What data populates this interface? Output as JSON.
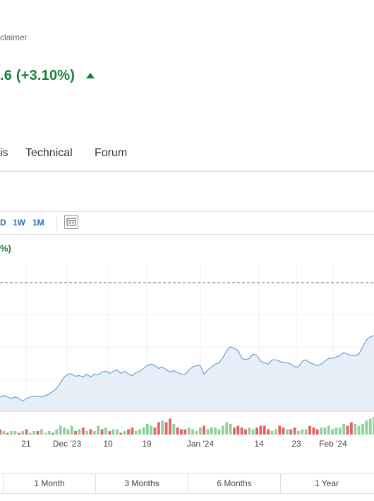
{
  "header": {
    "disclaimer_text": "claimer",
    "price_change_text": ".6  (+3.10%)",
    "pct_change_partial": "%)",
    "accent_up": "#1a7f37"
  },
  "tabs": [
    {
      "label": "is"
    },
    {
      "label": "Technical"
    },
    {
      "label": "Forum"
    }
  ],
  "toolbar": {
    "timeframes": [
      "D",
      "1W",
      "1M"
    ],
    "layout_icon": "layout-icon"
  },
  "chart_data": {
    "type": "area",
    "x_tick_labels": [
      "21",
      "Dec '23",
      "10",
      "19",
      "Jan '24",
      "14",
      "23",
      "Feb '24"
    ],
    "price": [
      20,
      22,
      20,
      18,
      20,
      18,
      14,
      18,
      20,
      21,
      21,
      20,
      22,
      24,
      28,
      32,
      40,
      48,
      52,
      52,
      49,
      50,
      48,
      52,
      48,
      52,
      51,
      55,
      56,
      53,
      56,
      58,
      53,
      56,
      52,
      50,
      54,
      56,
      60,
      64,
      66,
      64,
      60,
      62,
      58,
      55,
      57,
      54,
      52,
      51,
      58,
      62,
      64,
      64,
      52,
      58,
      62,
      66,
      68,
      75,
      85,
      90,
      88,
      85,
      74,
      72,
      74,
      80,
      78,
      70,
      68,
      66,
      72,
      72,
      70,
      68,
      68,
      66,
      62,
      62,
      70,
      72,
      68,
      66,
      64,
      66,
      70,
      74,
      74,
      76,
      78,
      82,
      80,
      78,
      78,
      80,
      90,
      100,
      104,
      106
    ],
    "price_min": 0,
    "price_max": 180,
    "reference_level": 180,
    "volume": [
      3,
      2,
      1,
      2,
      2,
      1,
      2,
      3,
      1,
      2,
      2,
      3,
      1,
      2,
      1,
      3,
      5,
      4,
      3,
      5,
      2,
      3,
      4,
      2,
      3,
      2,
      5,
      3,
      4,
      2,
      3,
      3,
      1,
      2,
      3,
      4,
      2,
      3,
      4,
      6,
      5,
      4,
      7,
      8,
      7,
      9,
      6,
      4,
      3,
      3,
      4,
      3,
      2,
      4,
      5,
      3,
      4,
      4,
      3,
      5,
      7,
      6,
      4,
      5,
      4,
      3,
      4,
      3,
      4,
      5,
      5,
      3,
      2,
      3,
      5,
      4,
      3,
      3,
      4,
      2,
      3,
      3,
      5,
      4,
      3,
      4,
      4,
      5,
      3,
      4,
      4,
      6,
      5,
      7,
      6,
      5,
      6,
      8,
      9,
      10
    ],
    "volume_up": [
      false,
      true,
      false,
      true,
      true,
      false,
      true,
      false,
      true,
      true,
      false,
      true,
      true,
      true,
      false,
      true,
      true,
      true,
      true,
      true,
      false,
      true,
      false,
      true,
      false,
      true,
      true,
      false,
      true,
      false,
      true,
      true,
      false,
      true,
      false,
      false,
      true,
      true,
      true,
      true,
      true,
      false,
      false,
      true,
      false,
      false,
      true,
      false,
      false,
      false,
      true,
      true,
      true,
      true,
      false,
      true,
      true,
      true,
      true,
      true,
      true,
      true,
      false,
      false,
      false,
      false,
      true,
      true,
      false,
      false,
      false,
      false,
      true,
      true,
      false,
      false,
      true,
      false,
      false,
      true,
      true,
      true,
      false,
      false,
      false,
      true,
      true,
      true,
      true,
      true,
      true,
      true,
      false,
      false,
      true,
      true,
      true,
      true,
      true,
      true
    ],
    "volume_max": 12,
    "colors": {
      "line": "#6a9fd4",
      "area": "#e6eff7",
      "vol_up": "#8fd19e",
      "vol_down": "#e06666",
      "grid": "#efefef",
      "dashed": "#333333"
    }
  },
  "ranges": [
    "1 Month",
    "3 Months",
    "6 Months",
    "1 Year"
  ]
}
